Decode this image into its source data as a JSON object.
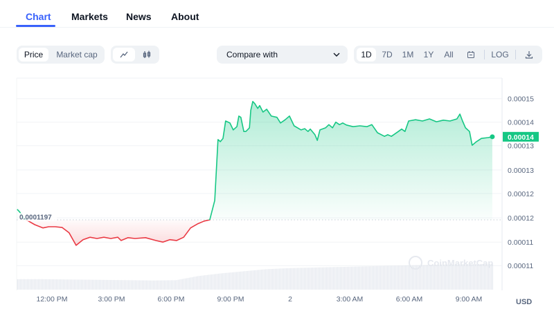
{
  "tabs": [
    {
      "label": "Chart",
      "active": true
    },
    {
      "label": "Markets",
      "active": false
    },
    {
      "label": "News",
      "active": false
    },
    {
      "label": "About",
      "active": false
    }
  ],
  "toolbar": {
    "metric_toggle": [
      "Price",
      "Market cap"
    ],
    "metric_selected": "Price",
    "chart_type_icons": [
      "line-chart-icon",
      "candlestick-icon"
    ],
    "chart_type_selected": "line",
    "compare_label": "Compare with",
    "ranges": [
      "1D",
      "7D",
      "1M",
      "1Y",
      "All"
    ],
    "range_selected": "1D",
    "calendar_icon": "calendar-icon",
    "log_label": "LOG",
    "download_icon": "download-icon"
  },
  "colors": {
    "up": "#16c784",
    "down": "#ea3943",
    "accent": "#3861fb"
  },
  "chart_data": {
    "type": "area",
    "currency": "USD",
    "baseline": {
      "value": 0.0001197,
      "label": "0.0001197"
    },
    "last_price": {
      "value": 0.0001402,
      "label": "0.00014"
    },
    "watermark": "CoinMarketCap",
    "x_ticks": [
      {
        "day": 1,
        "time": "12:00",
        "label": "12:00 PM"
      },
      {
        "day": 1,
        "time": "15:00",
        "label": "3:00 PM"
      },
      {
        "day": 1,
        "time": "18:00",
        "label": "6:00 PM"
      },
      {
        "day": 1,
        "time": "21:00",
        "label": "9:00 PM"
      },
      {
        "day": 2,
        "time": "00:00",
        "label": "2"
      },
      {
        "day": 2,
        "time": "03:00",
        "label": "3:00 AM"
      },
      {
        "day": 2,
        "time": "06:00",
        "label": "6:00 AM"
      },
      {
        "day": 2,
        "time": "09:00",
        "label": "9:00 AM"
      }
    ],
    "y_ticks": [
      {
        "value": 0.0001496,
        "label": "0.00015"
      },
      {
        "value": 0.0001438,
        "label": "0.00014"
      },
      {
        "value": 0.000138,
        "label": "0.00013"
      },
      {
        "value": 0.000132,
        "label": "0.00013"
      },
      {
        "value": 0.0001262,
        "label": "0.00012"
      },
      {
        "value": 0.0001202,
        "label": "0.00012"
      },
      {
        "value": 0.0001142,
        "label": "0.00011"
      },
      {
        "value": 0.0001084,
        "label": "0.00011"
      }
    ],
    "grid": true,
    "series": [
      [
        1,
        "10:15",
        0.0001223
      ],
      [
        1,
        "10:22",
        0.0001217
      ],
      [
        1,
        "10:36",
        0.00012
      ],
      [
        1,
        "11:08",
        0.0001185
      ],
      [
        1,
        "11:33",
        0.0001177
      ],
      [
        1,
        "11:50",
        0.000118
      ],
      [
        1,
        "12:10",
        0.000118
      ],
      [
        1,
        "12:31",
        0.0001178
      ],
      [
        1,
        "12:52",
        0.0001165
      ],
      [
        1,
        "13:13",
        0.0001134
      ],
      [
        1,
        "13:34",
        0.0001148
      ],
      [
        1,
        "13:55",
        0.0001154
      ],
      [
        1,
        "14:16",
        0.0001151
      ],
      [
        1,
        "14:37",
        0.0001154
      ],
      [
        1,
        "14:58",
        0.0001151
      ],
      [
        1,
        "15:19",
        0.0001154
      ],
      [
        1,
        "15:29",
        0.0001146
      ],
      [
        1,
        "15:50",
        0.0001153
      ],
      [
        1,
        "16:11",
        0.0001151
      ],
      [
        1,
        "16:43",
        0.0001153
      ],
      [
        1,
        "17:14",
        0.0001146
      ],
      [
        1,
        "17:35",
        0.0001142
      ],
      [
        1,
        "17:56",
        0.0001148
      ],
      [
        1,
        "18:17",
        0.0001146
      ],
      [
        1,
        "18:38",
        0.0001154
      ],
      [
        1,
        "18:59",
        0.0001177
      ],
      [
        1,
        "19:20",
        0.0001187
      ],
      [
        1,
        "19:40",
        0.0001194
      ],
      [
        1,
        "19:57",
        0.0001197
      ],
      [
        1,
        "20:12",
        0.0001245
      ],
      [
        1,
        "20:22",
        0.0001395
      ],
      [
        1,
        "20:29",
        0.000139
      ],
      [
        1,
        "20:37",
        0.0001398
      ],
      [
        1,
        "20:45",
        0.0001441
      ],
      [
        1,
        "20:58",
        0.0001436
      ],
      [
        1,
        "21:08",
        0.0001419
      ],
      [
        1,
        "21:19",
        0.0001427
      ],
      [
        1,
        "21:25",
        0.0001453
      ],
      [
        1,
        "21:31",
        0.000145
      ],
      [
        1,
        "21:40",
        0.0001415
      ],
      [
        1,
        "21:46",
        0.0001415
      ],
      [
        1,
        "21:57",
        0.0001424
      ],
      [
        1,
        "22:01",
        0.0001467
      ],
      [
        1,
        "22:07",
        0.0001489
      ],
      [
        1,
        "22:13",
        0.0001484
      ],
      [
        1,
        "22:22",
        0.0001472
      ],
      [
        1,
        "22:28",
        0.0001479
      ],
      [
        1,
        "22:38",
        0.0001463
      ],
      [
        1,
        "22:49",
        0.000147
      ],
      [
        1,
        "23:03",
        0.0001453
      ],
      [
        1,
        "23:20",
        0.000145
      ],
      [
        1,
        "23:31",
        0.0001436
      ],
      [
        1,
        "23:45",
        0.0001444
      ],
      [
        1,
        "23:58",
        0.0001453
      ],
      [
        2,
        "00:12",
        0.0001429
      ],
      [
        2,
        "00:33",
        0.0001419
      ],
      [
        2,
        "00:44",
        0.0001422
      ],
      [
        2,
        "00:54",
        0.0001415
      ],
      [
        2,
        "01:01",
        0.0001421
      ],
      [
        2,
        "01:15",
        0.0001407
      ],
      [
        2,
        "01:22",
        0.0001393
      ],
      [
        2,
        "01:30",
        0.0001419
      ],
      [
        2,
        "01:47",
        0.0001424
      ],
      [
        2,
        "01:57",
        0.0001432
      ],
      [
        2,
        "02:08",
        0.0001424
      ],
      [
        2,
        "02:18",
        0.0001438
      ],
      [
        2,
        "02:29",
        0.0001432
      ],
      [
        2,
        "02:39",
        0.0001436
      ],
      [
        2,
        "02:50",
        0.0001431
      ],
      [
        2,
        "03:10",
        0.0001427
      ],
      [
        2,
        "03:31",
        0.0001429
      ],
      [
        2,
        "03:52",
        0.0001427
      ],
      [
        2,
        "04:07",
        0.0001432
      ],
      [
        2,
        "04:24",
        0.0001412
      ],
      [
        2,
        "04:45",
        0.0001403
      ],
      [
        2,
        "04:55",
        0.0001407
      ],
      [
        2,
        "05:06",
        0.0001403
      ],
      [
        2,
        "05:27",
        0.0001415
      ],
      [
        2,
        "05:37",
        0.0001421
      ],
      [
        2,
        "05:47",
        0.0001415
      ],
      [
        2,
        "05:58",
        0.0001441
      ],
      [
        2,
        "06:19",
        0.0001444
      ],
      [
        2,
        "06:40",
        0.0001441
      ],
      [
        2,
        "07:01",
        0.0001446
      ],
      [
        2,
        "07:22",
        0.0001439
      ],
      [
        2,
        "07:43",
        0.0001443
      ],
      [
        2,
        "08:03",
        0.0001441
      ],
      [
        2,
        "08:24",
        0.0001446
      ],
      [
        2,
        "08:33",
        0.0001458
      ],
      [
        2,
        "08:41",
        0.0001441
      ],
      [
        2,
        "08:50",
        0.0001424
      ],
      [
        2,
        "09:02",
        0.0001415
      ],
      [
        2,
        "09:10",
        0.0001381
      ],
      [
        2,
        "09:23",
        0.000139
      ],
      [
        2,
        "09:38",
        0.0001398
      ],
      [
        2,
        "09:59",
        0.00014
      ],
      [
        2,
        "10:11",
        0.0001402
      ]
    ],
    "volume_relative": [
      0.4,
      0.4,
      0.39,
      0.38,
      0.37,
      0.36,
      0.35,
      0.36,
      0.52,
      0.62,
      0.7,
      0.78,
      0.82,
      0.84,
      0.86,
      0.88,
      0.9,
      0.92,
      0.94,
      0.96,
      0.97,
      0.98
    ]
  }
}
